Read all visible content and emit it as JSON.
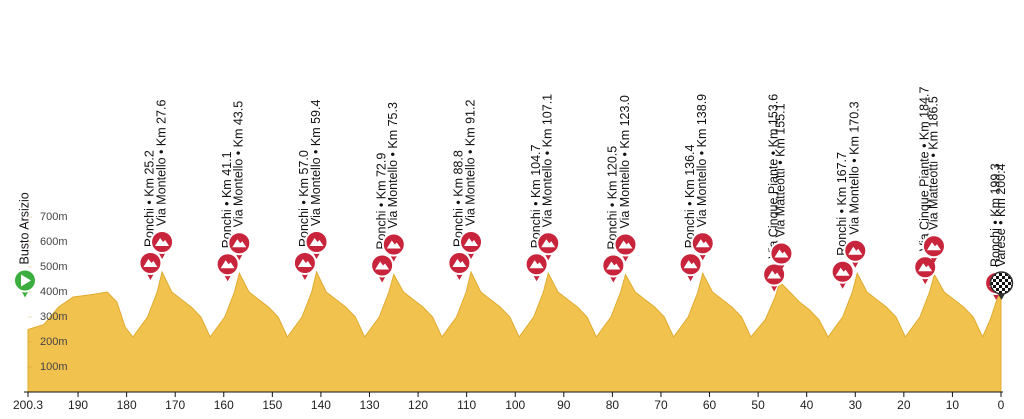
{
  "chart_data": {
    "type": "area",
    "x": [
      200.3,
      197,
      194,
      191,
      187,
      184,
      182,
      180.3,
      178.7,
      175.7,
      173.7,
      172.7,
      170.7,
      168.7,
      166.7,
      164.7,
      162.8,
      159.8,
      157.8,
      156.8,
      154.8,
      152.8,
      150.8,
      148.8,
      146.9,
      143.9,
      141.9,
      140.9,
      138.9,
      136.9,
      134.9,
      132.9,
      131.0,
      128.0,
      126.0,
      125.0,
      123.0,
      121.0,
      119.0,
      117.0,
      115.1,
      112.1,
      110.1,
      109.1,
      107.1,
      105.1,
      103.1,
      101.1,
      99.2,
      96.2,
      94.2,
      93.2,
      91.2,
      89.2,
      87.2,
      85.2,
      83.3,
      80.3,
      78.3,
      77.3,
      75.3,
      73.3,
      71.3,
      69.3,
      67.4,
      64.4,
      62.4,
      61.4,
      59.4,
      57.4,
      55.4,
      53.4,
      51.5,
      48.5,
      46.5,
      45.5,
      43.5,
      41.5,
      39.5,
      37.5,
      35.6,
      32.6,
      30.6,
      29.6,
      27.6,
      25.6,
      23.6,
      21.6,
      19.7,
      16.7,
      14.7,
      13.7,
      11.7,
      9.7,
      7.7,
      5.7,
      3.8,
      2.2,
      1,
      0
    ],
    "values": [
      250,
      270,
      340,
      380,
      390,
      400,
      360,
      260,
      220,
      300,
      400,
      480,
      400,
      370,
      340,
      300,
      220,
      300,
      400,
      475,
      400,
      370,
      340,
      300,
      220,
      300,
      400,
      480,
      400,
      370,
      340,
      300,
      220,
      300,
      400,
      470,
      400,
      370,
      340,
      300,
      220,
      300,
      400,
      480,
      400,
      370,
      340,
      300,
      220,
      300,
      400,
      475,
      400,
      370,
      340,
      300,
      220,
      300,
      400,
      470,
      400,
      370,
      340,
      300,
      220,
      300,
      400,
      475,
      400,
      370,
      340,
      300,
      220,
      290,
      380,
      440,
      400,
      360,
      330,
      290,
      220,
      300,
      400,
      475,
      400,
      370,
      340,
      300,
      220,
      300,
      400,
      470,
      400,
      370,
      340,
      300,
      220,
      290,
      360,
      400
    ],
    "color": "#f2c24f",
    "xlim": [
      200.3,
      0
    ],
    "xticks": [
      200.3,
      190,
      180,
      170,
      160,
      150,
      140,
      130,
      120,
      110,
      100,
      90,
      80,
      70,
      60,
      50,
      40,
      30,
      20,
      10,
      0
    ],
    "ylim": [
      0,
      1400
    ],
    "yticks": [
      {
        "value": 100,
        "label": "100m"
      },
      {
        "value": 200,
        "label": "200m"
      },
      {
        "value": 300,
        "label": "300m"
      },
      {
        "value": 400,
        "label": "400m"
      },
      {
        "value": 500,
        "label": "500m"
      },
      {
        "value": 600,
        "label": "600m"
      },
      {
        "value": 700,
        "label": "700m"
      }
    ],
    "start": {
      "label": "Busto Arsizio",
      "x": 200.3
    },
    "markers": [
      {
        "label": "Ronchi • Km 25.2",
        "x": 175.1
      },
      {
        "label": "Via Montello • Km 27.6",
        "x": 172.7
      },
      {
        "label": "Ronchi • Km 41.1",
        "x": 159.2
      },
      {
        "label": "Via Montello • Km 43.5",
        "x": 156.8
      },
      {
        "label": "Ronchi • Km 57.0",
        "x": 143.3
      },
      {
        "label": "Via Montello • Km 59.4",
        "x": 140.9
      },
      {
        "label": "Ronchi • Km 72.9",
        "x": 127.4
      },
      {
        "label": "Via Montello • Km 75.3",
        "x": 125.0
      },
      {
        "label": "Ronchi • Km 88.8",
        "x": 111.5
      },
      {
        "label": "Via Montello • Km 91.2",
        "x": 109.1
      },
      {
        "label": "Ronchi • Km 104.7",
        "x": 95.6
      },
      {
        "label": "Via Montello • Km 107.1",
        "x": 93.2
      },
      {
        "label": "Ronchi • Km 120.5",
        "x": 79.8
      },
      {
        "label": "Via Montello • Km 123.0",
        "x": 77.3
      },
      {
        "label": "Ronchi • Km 136.4",
        "x": 63.9
      },
      {
        "label": "Via Montello • Km 138.9",
        "x": 61.4
      },
      {
        "label": "Via Cinque Piante • Km 153.6",
        "x": 46.7
      },
      {
        "label": "Via Matteotti • Km 155.1",
        "x": 45.2
      },
      {
        "label": "Ronchi • Km 167.7",
        "x": 32.6
      },
      {
        "label": "Via Montello • Km 170.3",
        "x": 30.0
      },
      {
        "label": "Via Cinque Piante • Km 184.7",
        "x": 15.6
      },
      {
        "label": "Via Matteotti • Km 186.5",
        "x": 13.8
      },
      {
        "label": "Ronchi • Km 199.3",
        "x": 1.0
      },
      {
        "label": "Varese • Km 200.4",
        "x": -0.1
      }
    ]
  }
}
